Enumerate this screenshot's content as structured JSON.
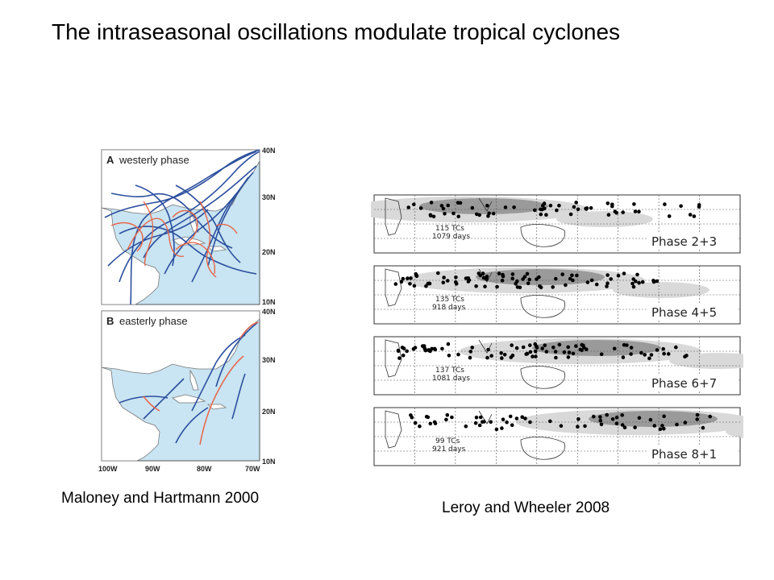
{
  "slide": {
    "title": "The intraseasonal oscillations modulate tropical cyclones",
    "caption_left": "Maloney and Hartmann 2000",
    "caption_right": "Leroy and Wheeler 2008"
  },
  "left_figure": {
    "panel_a": {
      "letter": "A",
      "label": "westerly phase"
    },
    "panel_b": {
      "letter": "B",
      "label": "easterly phase"
    },
    "lat_labels_a": [
      "40N",
      "30N",
      "20N",
      "10N"
    ],
    "lat_labels_b": [
      "40N",
      "30N",
      "20N",
      "10N"
    ],
    "lon_labels": [
      "100W",
      "90W",
      "80W",
      "70W"
    ],
    "colors": {
      "ocean": "#c9e4f2",
      "land": "#ffffff",
      "track_blue": "#2b4f9e",
      "track_red": "#e8664a"
    }
  },
  "right_figure": {
    "panels": [
      {
        "phase": "Phase  2+3",
        "tcs": "115 TCs",
        "days": "1079 days"
      },
      {
        "phase": "Phase  4+5",
        "tcs": "135 TCs",
        "days": "918 days"
      },
      {
        "phase": "Phase  6+7",
        "tcs": "137 TCs",
        "days": "1081 days"
      },
      {
        "phase": "Phase  8+1",
        "tcs": "99 TCs",
        "days": "921 days"
      }
    ],
    "colors": {
      "shade_light": "#d9d9d9",
      "shade_dark": "#9a9a9a",
      "dot": "#000000"
    }
  }
}
